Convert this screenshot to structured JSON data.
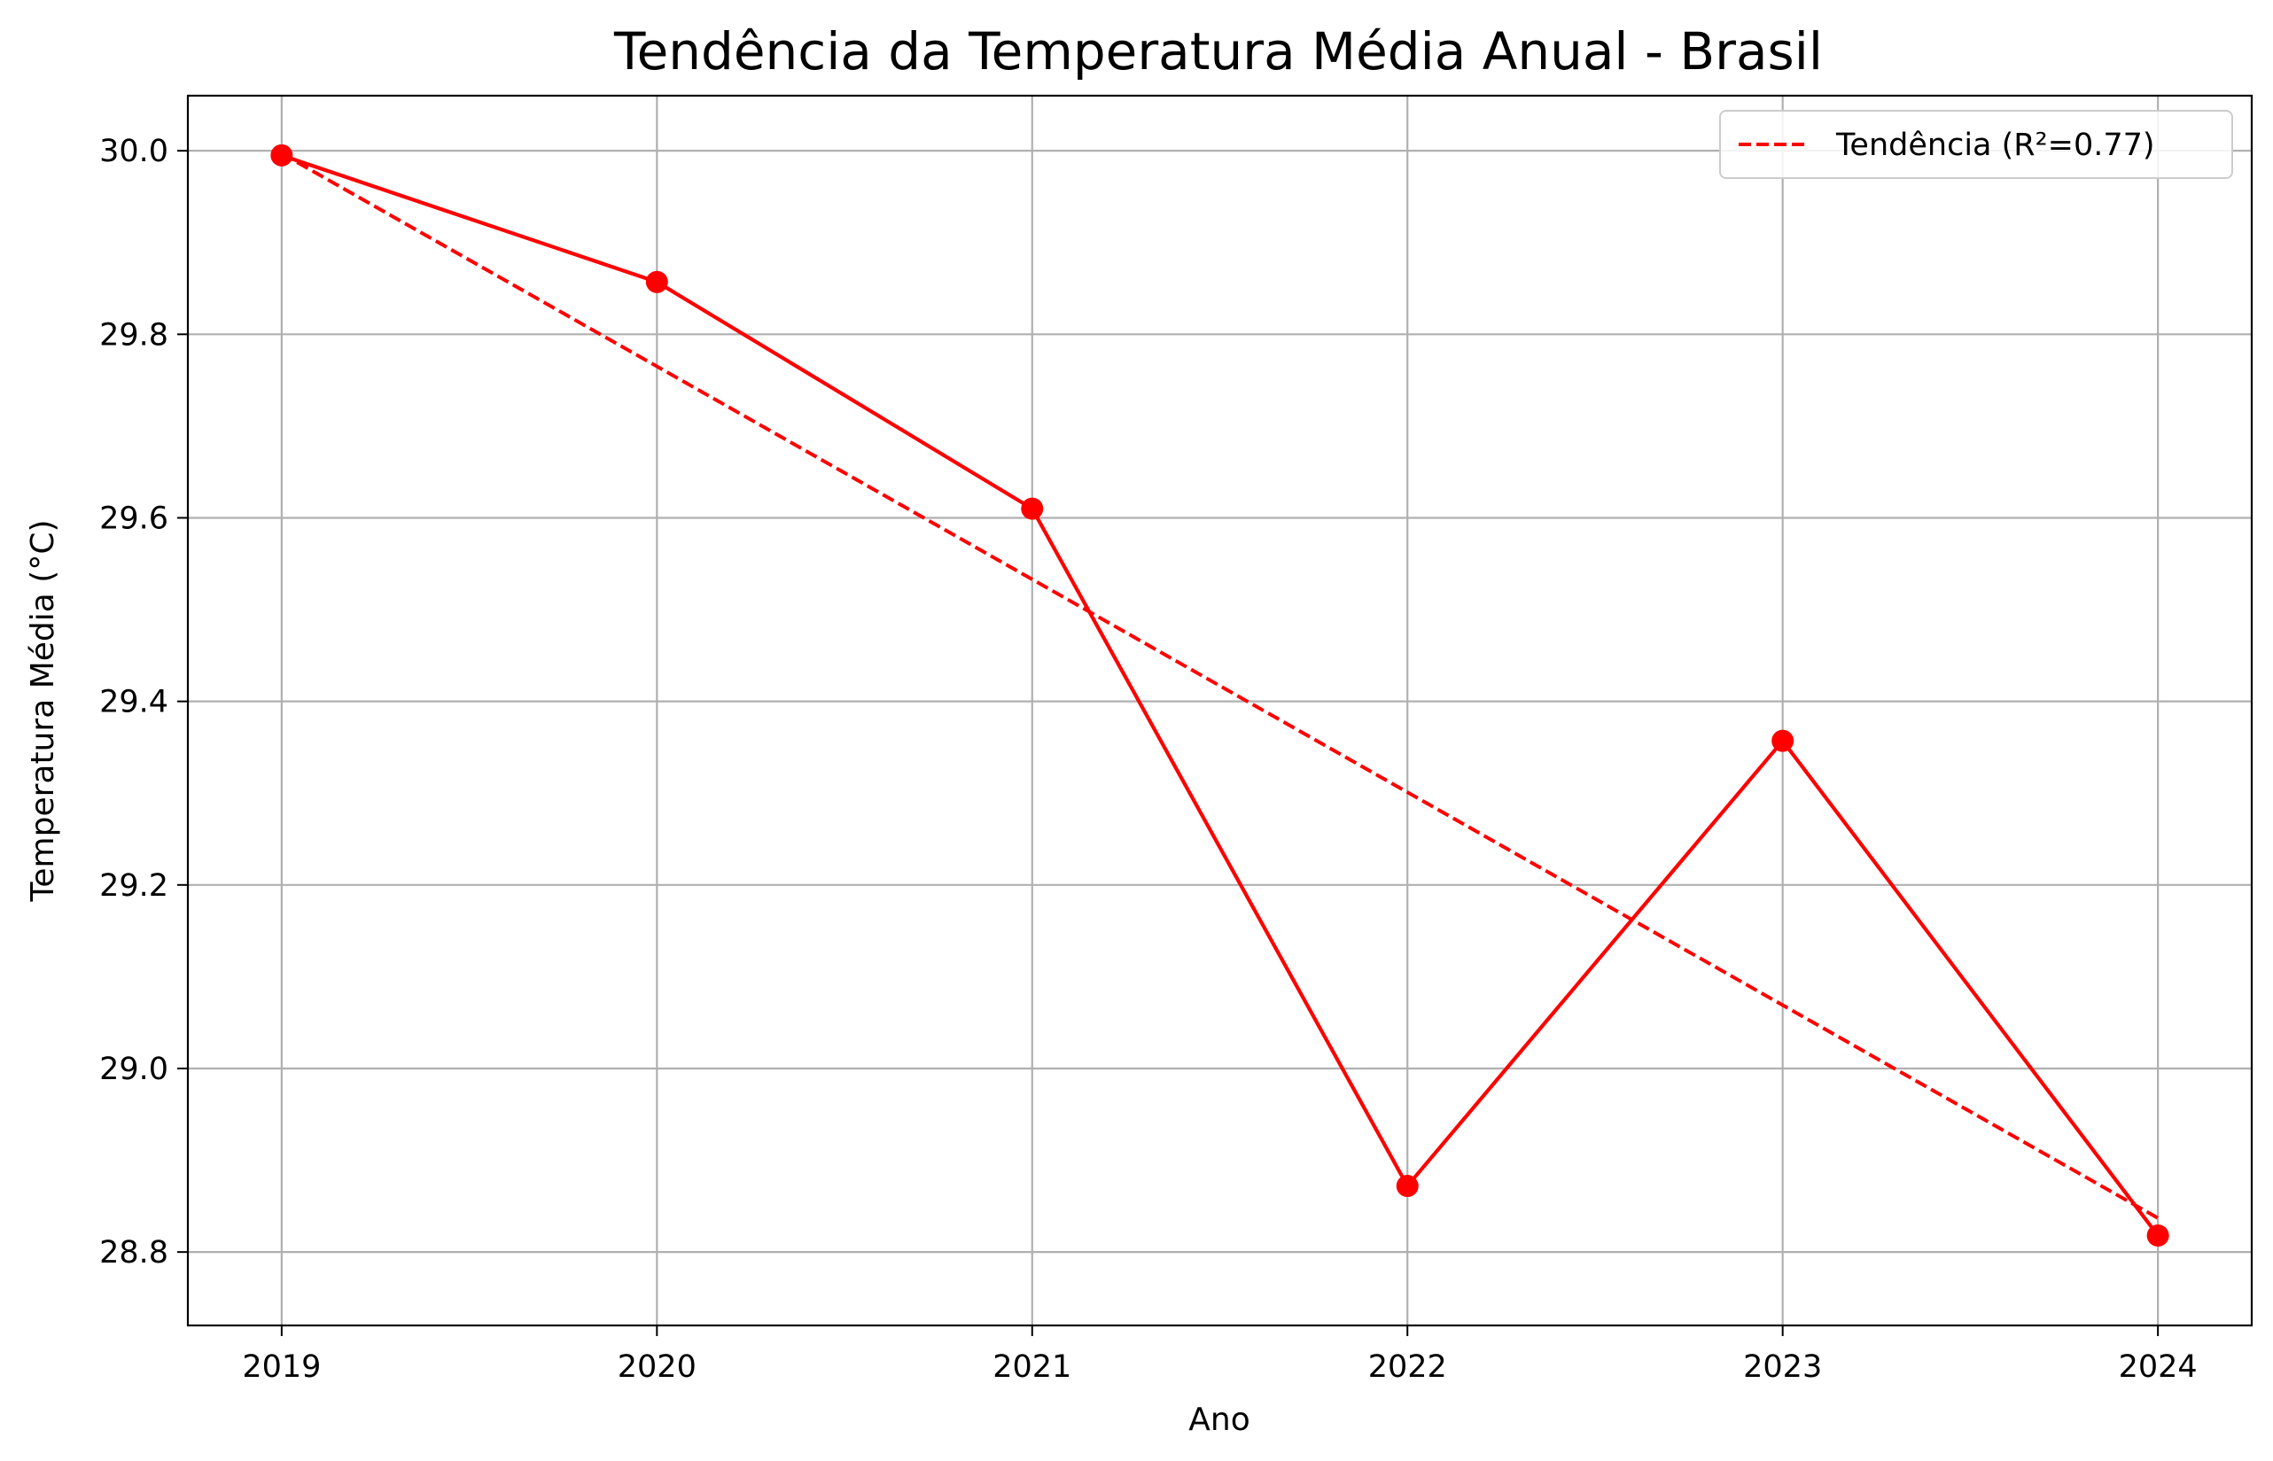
{
  "chart_data": {
    "type": "line",
    "title": "Tendência da Temperatura Média Anual - Brasil",
    "xlabel": "Ano",
    "ylabel": "Temperatura Média (°C)",
    "x": [
      2019,
      2020,
      2021,
      2022,
      2023,
      2024
    ],
    "x_tick_labels": [
      "2019",
      "2020",
      "2021",
      "2022",
      "2023",
      "2024"
    ],
    "xlim": [
      2018.75,
      2024.25
    ],
    "y_ticks": [
      28.8,
      29.0,
      29.2,
      29.4,
      29.6,
      29.8,
      30.0
    ],
    "y_tick_labels": [
      "28.8",
      "29.0",
      "29.2",
      "29.4",
      "29.6",
      "29.8",
      "30.0"
    ],
    "ylim": [
      28.72,
      30.06
    ],
    "grid": true,
    "legend_position": "top-right",
    "series": [
      {
        "style": "solid-with-markers",
        "color": "#ff0000",
        "values": [
          29.995,
          29.857,
          29.61,
          28.872,
          29.357,
          28.818
        ]
      },
      {
        "name": "Tendência (R²=0.77)",
        "style": "dashed",
        "color": "#ff0000",
        "values": [
          29.997,
          29.765,
          29.533,
          29.301,
          29.069,
          28.837
        ]
      }
    ]
  }
}
